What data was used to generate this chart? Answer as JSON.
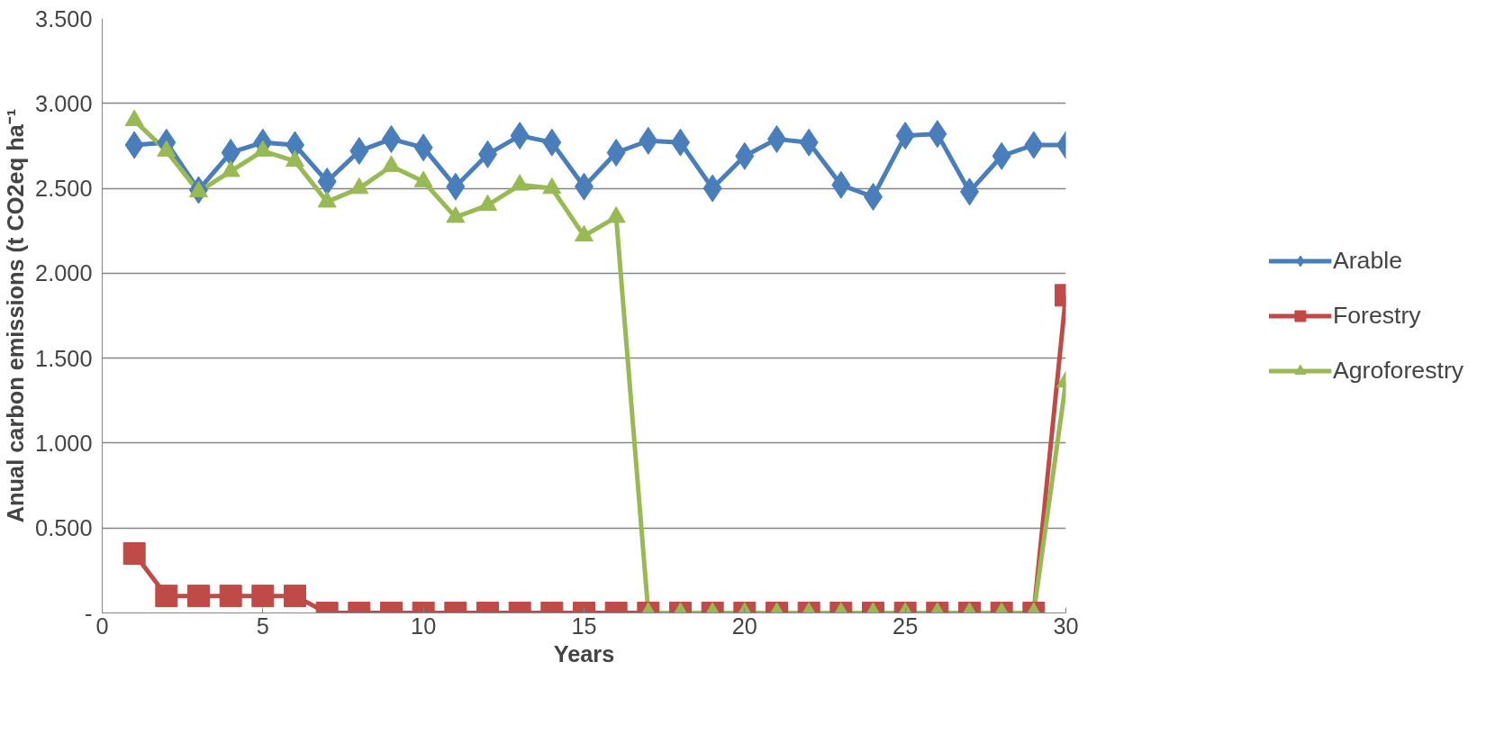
{
  "chart_data": {
    "type": "line",
    "xlabel": "Years",
    "ylabel": "Anual carbon emissions (t CO2eq ha⁻¹",
    "x": [
      1,
      2,
      3,
      4,
      5,
      6,
      7,
      8,
      9,
      10,
      11,
      12,
      13,
      14,
      15,
      16,
      17,
      18,
      19,
      20,
      21,
      22,
      23,
      24,
      25,
      26,
      27,
      28,
      29,
      30
    ],
    "series": [
      {
        "name": "Arable",
        "color": "#4a7ebb",
        "marker": "diamond",
        "values": [
          2.755,
          2.77,
          2.49,
          2.71,
          2.77,
          2.755,
          2.54,
          2.72,
          2.79,
          2.74,
          2.51,
          2.7,
          2.81,
          2.77,
          2.51,
          2.71,
          2.78,
          2.77,
          2.5,
          2.69,
          2.79,
          2.77,
          2.52,
          2.45,
          2.81,
          2.82,
          2.48,
          2.69,
          2.755,
          2.755
        ]
      },
      {
        "name": "Forestry",
        "color": "#be4b48",
        "marker": "square",
        "values": [
          0.35,
          0.1,
          0.1,
          0.1,
          0.1,
          0.1,
          0,
          0,
          0,
          0,
          0,
          0,
          0,
          0,
          0,
          0,
          0,
          0,
          0,
          0,
          0,
          0,
          0,
          0,
          0,
          0,
          0,
          0,
          0,
          1.87
        ]
      },
      {
        "name": "Agroforestry",
        "color": "#98b954",
        "marker": "triangle",
        "values": [
          2.9,
          2.72,
          2.48,
          2.6,
          2.72,
          2.66,
          2.42,
          2.5,
          2.63,
          2.54,
          2.33,
          2.4,
          2.52,
          2.5,
          2.22,
          2.33,
          0,
          0,
          0,
          0,
          0,
          0,
          0,
          0,
          0,
          0,
          0,
          0,
          0,
          1.36
        ]
      }
    ],
    "xlim": [
      0,
      30
    ],
    "xticks": [
      0,
      5,
      10,
      15,
      20,
      25,
      30
    ],
    "ylim": [
      0,
      3.5
    ],
    "yticks": [
      {
        "value": 0,
        "label": "-"
      },
      {
        "value": 0.5,
        "label": "0.500"
      },
      {
        "value": 1,
        "label": "1.000"
      },
      {
        "value": 1.5,
        "label": "1.500"
      },
      {
        "value": 2,
        "label": "2.000"
      },
      {
        "value": 2.5,
        "label": "2.500"
      },
      {
        "value": 3,
        "label": "3.000"
      },
      {
        "value": 3.5,
        "label": "3.500"
      }
    ],
    "grid": "y",
    "legend": "right",
    "line_style": "solid"
  }
}
